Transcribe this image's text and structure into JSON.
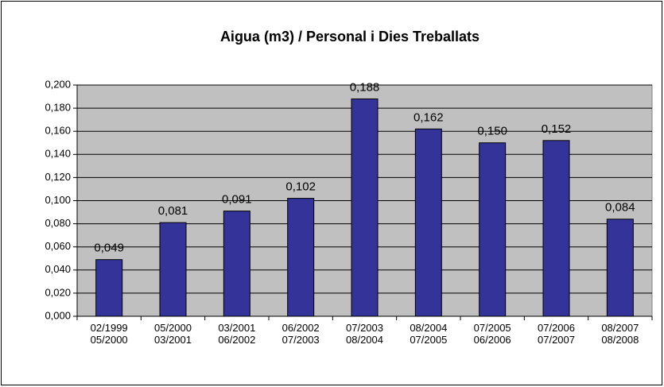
{
  "chart_data": {
    "type": "bar",
    "title": "Aigua (m3) / Personal i Dies Treballats",
    "categories": [
      "02/1999\n05/2000",
      "05/2000\n03/2001",
      "03/2001\n06/2002",
      "06/2002\n07/2003",
      "07/2003\n08/2004",
      "08/2004\n07/2005",
      "07/2005\n06/2006",
      "07/2006\n07/2007",
      "08/2007\n08/2008"
    ],
    "values": [
      0.049,
      0.081,
      0.091,
      0.102,
      0.188,
      0.162,
      0.15,
      0.152,
      0.084
    ],
    "value_labels": [
      "0,049",
      "0,081",
      "0,091",
      "0,102",
      "0,188",
      "0,162",
      "0,150",
      "0,152",
      "0,084"
    ],
    "color": "#333399",
    "ylim": [
      0,
      0.2
    ],
    "yticks": [
      {
        "value": 0,
        "label": "0,000"
      },
      {
        "value": 0.02,
        "label": "0,020"
      },
      {
        "value": 0.04,
        "label": "0,040"
      },
      {
        "value": 0.06,
        "label": "0,060"
      },
      {
        "value": 0.08,
        "label": "0,080"
      },
      {
        "value": 0.1,
        "label": "0,100"
      },
      {
        "value": 0.12,
        "label": "0,120"
      },
      {
        "value": 0.14,
        "label": "0,140"
      },
      {
        "value": 0.16,
        "label": "0,160"
      },
      {
        "value": 0.18,
        "label": "0,180"
      },
      {
        "value": 0.2,
        "label": "0,200"
      }
    ],
    "grid": true
  }
}
